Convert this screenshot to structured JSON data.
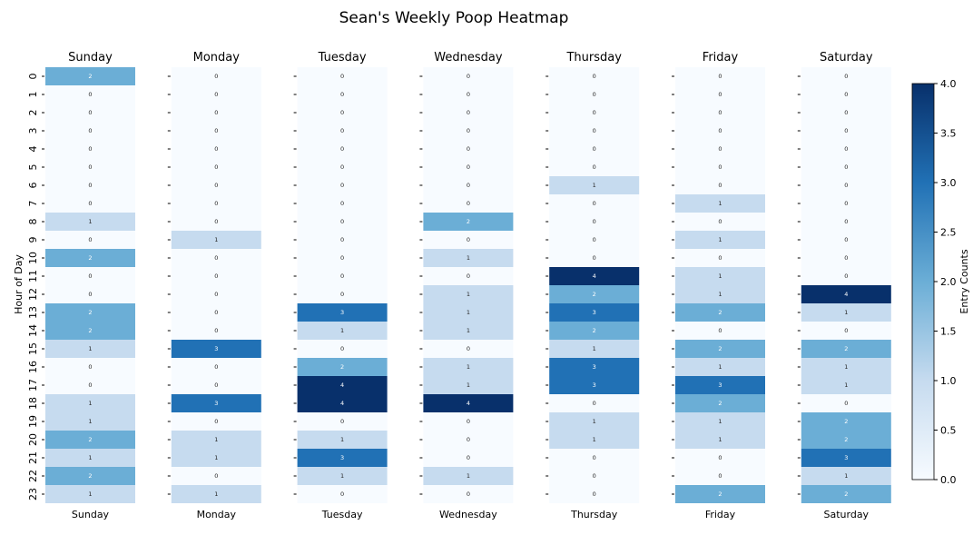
{
  "chart_data": {
    "type": "heatmap",
    "title": "Sean's Weekly Poop Heatmap",
    "ylabel": "Hour of Day",
    "colorbar_label": "Entry Counts",
    "colorbar_range": [
      0,
      4
    ],
    "colorbar_ticks": [
      "0.0",
      "0.5",
      "1.0",
      "1.5",
      "2.0",
      "2.5",
      "3.0",
      "3.5",
      "4.0"
    ],
    "hours": [
      "0",
      "1",
      "2",
      "3",
      "4",
      "5",
      "6",
      "7",
      "8",
      "9",
      "10",
      "11",
      "12",
      "13",
      "14",
      "15",
      "16",
      "17",
      "18",
      "19",
      "20",
      "21",
      "22",
      "23"
    ],
    "colormap": [
      "#f7fbff",
      "#c6dbef",
      "#6baed6",
      "#2171b5",
      "#08306b"
    ],
    "days": [
      {
        "name": "Sunday",
        "values": [
          2,
          0,
          0,
          0,
          0,
          0,
          0,
          0,
          1,
          0,
          2,
          0,
          0,
          2,
          2,
          1,
          0,
          0,
          1,
          1,
          2,
          1,
          2,
          1
        ]
      },
      {
        "name": "Monday",
        "values": [
          0,
          0,
          0,
          0,
          0,
          0,
          0,
          0,
          0,
          1,
          0,
          0,
          0,
          0,
          0,
          3,
          0,
          0,
          3,
          0,
          1,
          1,
          0,
          1
        ]
      },
      {
        "name": "Tuesday",
        "values": [
          0,
          0,
          0,
          0,
          0,
          0,
          0,
          0,
          0,
          0,
          0,
          0,
          0,
          3,
          1,
          0,
          2,
          4,
          4,
          0,
          1,
          3,
          1,
          0
        ]
      },
      {
        "name": "Wednesday",
        "values": [
          0,
          0,
          0,
          0,
          0,
          0,
          0,
          0,
          2,
          0,
          1,
          0,
          1,
          1,
          1,
          0,
          1,
          1,
          4,
          0,
          0,
          0,
          1,
          0
        ]
      },
      {
        "name": "Thursday",
        "values": [
          0,
          0,
          0,
          0,
          0,
          0,
          1,
          0,
          0,
          0,
          0,
          4,
          2,
          3,
          2,
          1,
          3,
          3,
          0,
          1,
          1,
          0,
          0,
          0
        ]
      },
      {
        "name": "Friday",
        "values": [
          0,
          0,
          0,
          0,
          0,
          0,
          0,
          1,
          0,
          1,
          0,
          1,
          1,
          2,
          0,
          2,
          1,
          3,
          2,
          1,
          1,
          0,
          0,
          2
        ]
      },
      {
        "name": "Saturday",
        "values": [
          0,
          0,
          0,
          0,
          0,
          0,
          0,
          0,
          0,
          0,
          0,
          0,
          4,
          1,
          0,
          2,
          1,
          1,
          0,
          2,
          2,
          3,
          1,
          2
        ]
      }
    ]
  }
}
